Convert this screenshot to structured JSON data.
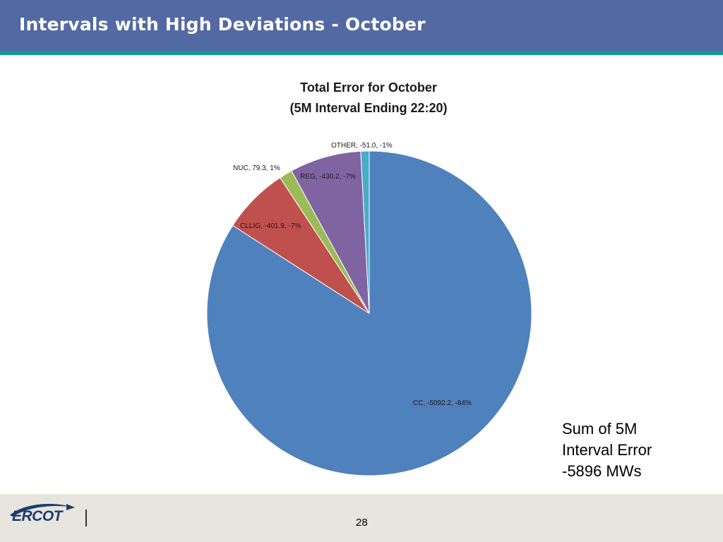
{
  "slide": {
    "title": "Intervals with High Deviations - October",
    "page_number": "28"
  },
  "side_note": {
    "lines": [
      "Sum of 5M",
      "Interval Error",
      "-5896 MWs"
    ]
  },
  "logo": {
    "text": "ERCOT",
    "color": "#1e3a6e"
  },
  "colors": {
    "header": "#5369a3",
    "header_stripe": "#13969a",
    "footer": "#e6e6de"
  },
  "chart_data": {
    "type": "pie",
    "title": [
      "Total Error for October",
      "(5M Interval Ending 22:20)"
    ],
    "start": "12 o'clock, clockwise",
    "slices": [
      {
        "name": "CC",
        "value": -5092.2,
        "percent": -84,
        "label": "CC, -5092.2, -84%",
        "color": "#4f81bd"
      },
      {
        "name": "CLLIG",
        "value": -401.9,
        "percent": -7,
        "label": "CLLIG, -401.9, -7%",
        "color": "#c0504d"
      },
      {
        "name": "NUC",
        "value": 79.3,
        "percent": 1,
        "label": "NUC, 79.3, 1%",
        "color": "#9bbb59"
      },
      {
        "name": "REG",
        "value": -430.2,
        "percent": -7,
        "label": "REG, -430.2, -7%",
        "color": "#8064a2"
      },
      {
        "name": "OTHER",
        "value": -51.0,
        "percent": -1,
        "label": "OTHER, -51.0, -1%",
        "color": "#4bacc6"
      }
    ]
  }
}
